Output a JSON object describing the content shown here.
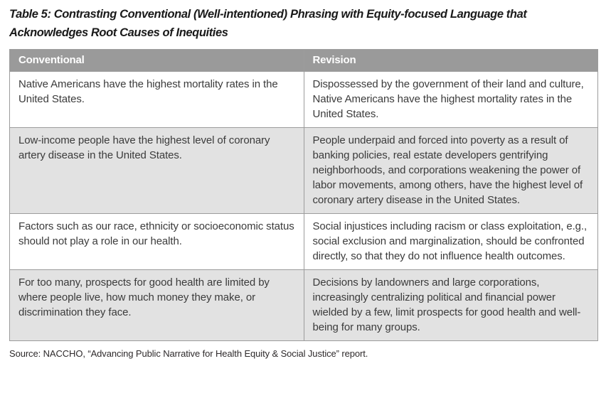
{
  "title": "Table 5: Contrasting Conventional (Well-intentioned) Phrasing with Equity-focused Language that Acknowledges Root Causes of Inequities",
  "table": {
    "columns": [
      "Conventional",
      "Revision"
    ],
    "rows": [
      {
        "conventional": "Native Americans have the highest mortality rates in the United States.",
        "revision": "Dispossessed by the government of their land and culture, Native Americans have the highest mortality rates in the United States."
      },
      {
        "conventional": "Low-income people have the highest level of coronary artery disease in the United States.",
        "revision": "People underpaid and forced into poverty as a result of banking policies, real estate developers gentrifying neighborhoods, and corporations weakening the power of labor movements, among others, have the highest level of coronary artery disease in the United States."
      },
      {
        "conventional": "Factors such as our race, ethnicity or socioeconomic status should not play a role in our health.",
        "revision": "Social injustices including racism or class exploitation, e.g., social exclusion and marginalization, should be confronted directly, so that they do not influence health outcomes."
      },
      {
        "conventional": "For too many, prospects for good health are limited by where people live, how much money they make, or discrimination they face.",
        "revision": "Decisions by landowners and large corporations, increasingly centralizing political and financial power wielded by a few, limit prospects for good health and well-being for many groups."
      }
    ]
  },
  "source": "Source: NACCHO, “Advancing Public Narrative for Health Equity & Social Justice” report.",
  "colors": {
    "header_bg": "#9a9a9a",
    "header_text": "#ffffff",
    "row_alt_bg": "#e2e2e2",
    "border": "#9c9c9c",
    "body_text": "#3b3b3b"
  }
}
